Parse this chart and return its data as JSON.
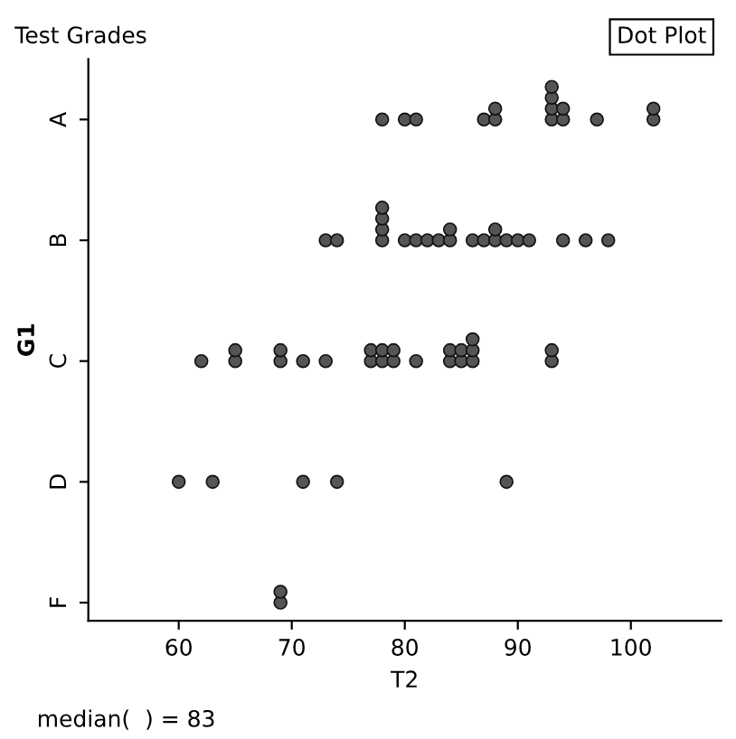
{
  "chart_data": {
    "type": "scatter",
    "title": "Test Grades",
    "xlabel": "T2",
    "ylabel": "G1",
    "orientation": "horizontal",
    "categories": [
      "A",
      "B",
      "C",
      "D",
      "F"
    ],
    "series": [
      {
        "color": "#555555",
        "values": [
          78,
          73,
          62,
          60,
          69
        ]
      },
      {
        "color": "#555555",
        "values": [
          80,
          74,
          65,
          63,
          69
        ]
      },
      {
        "color": "#555555",
        "values": [
          81,
          78,
          65,
          71,
          null
        ]
      },
      {
        "color": "#555555",
        "values": [
          87,
          78,
          69,
          74,
          null
        ]
      },
      {
        "color": "#555555",
        "values": [
          88,
          78,
          69,
          89,
          null
        ]
      },
      {
        "color": "#555555",
        "values": [
          88,
          78,
          71,
          null,
          null
        ]
      },
      {
        "color": "#555555",
        "values": [
          93,
          80,
          73,
          null,
          null
        ]
      },
      {
        "color": "#555555",
        "values": [
          93,
          81,
          77,
          null,
          null
        ]
      },
      {
        "color": "#555555",
        "values": [
          93,
          82,
          77,
          null,
          null
        ]
      },
      {
        "color": "#555555",
        "values": [
          93,
          83,
          78,
          null,
          null
        ]
      },
      {
        "color": "#555555",
        "values": [
          94,
          84,
          78,
          null,
          null
        ]
      },
      {
        "color": "#555555",
        "values": [
          94,
          84,
          79,
          null,
          null
        ]
      },
      {
        "color": "#555555",
        "values": [
          97,
          86,
          79,
          null,
          null
        ]
      },
      {
        "color": "#555555",
        "values": [
          102,
          87,
          81,
          null,
          null
        ]
      },
      {
        "color": "#555555",
        "values": [
          102,
          88,
          84,
          null,
          null
        ]
      },
      {
        "color": "#555555",
        "values": [
          null,
          88,
          84,
          null,
          null
        ]
      },
      {
        "color": "#555555",
        "values": [
          null,
          89,
          85,
          null,
          null
        ]
      },
      {
        "color": "#555555",
        "values": [
          null,
          90,
          85,
          null,
          null
        ]
      },
      {
        "color": "#555555",
        "values": [
          null,
          91,
          86,
          null,
          null
        ]
      },
      {
        "color": "#555555",
        "values": [
          null,
          94,
          86,
          null,
          null
        ]
      },
      {
        "color": "#555555",
        "values": [
          null,
          96,
          86,
          null,
          null
        ]
      },
      {
        "color": "#555555",
        "values": [
          null,
          98,
          93,
          null,
          null
        ]
      },
      {
        "color": "#555555",
        "values": [
          null,
          null,
          93,
          null,
          null
        ]
      }
    ],
    "xlim": [
      52,
      108
    ],
    "xticks": [
      60,
      70,
      80,
      90,
      100
    ],
    "marker": "circle",
    "grid": false,
    "annotations": [
      "Dot Plot",
      "median(  ) = 83"
    ]
  }
}
